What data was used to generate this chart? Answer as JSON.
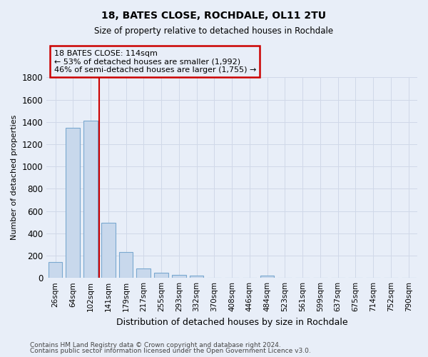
{
  "title": "18, BATES CLOSE, ROCHDALE, OL11 2TU",
  "subtitle": "Size of property relative to detached houses in Rochdale",
  "xlabel": "Distribution of detached houses by size in Rochdale",
  "ylabel": "Number of detached properties",
  "footnote1": "Contains HM Land Registry data © Crown copyright and database right 2024.",
  "footnote2": "Contains public sector information licensed under the Open Government Licence v3.0.",
  "categories": [
    "26sqm",
    "64sqm",
    "102sqm",
    "141sqm",
    "179sqm",
    "217sqm",
    "255sqm",
    "293sqm",
    "332sqm",
    "370sqm",
    "408sqm",
    "446sqm",
    "484sqm",
    "523sqm",
    "561sqm",
    "599sqm",
    "637sqm",
    "675sqm",
    "714sqm",
    "752sqm",
    "790sqm"
  ],
  "values": [
    140,
    1350,
    1410,
    495,
    230,
    85,
    47,
    25,
    18,
    0,
    0,
    0,
    18,
    0,
    0,
    0,
    0,
    0,
    0,
    0,
    0
  ],
  "bar_color": "#c8d8ec",
  "bar_edge_color": "#7aa8d0",
  "grid_color": "#d0d8e8",
  "bg_color": "#e8eef8",
  "red_line_x": 2.5,
  "annotation_line1": "18 BATES CLOSE: 114sqm",
  "annotation_line2": "← 53% of detached houses are smaller (1,992)",
  "annotation_line3": "46% of semi-detached houses are larger (1,755) →",
  "annotation_box_color": "#cc0000",
  "ylim": [
    0,
    1800
  ],
  "yticks": [
    0,
    200,
    400,
    600,
    800,
    1000,
    1200,
    1400,
    1600,
    1800
  ]
}
